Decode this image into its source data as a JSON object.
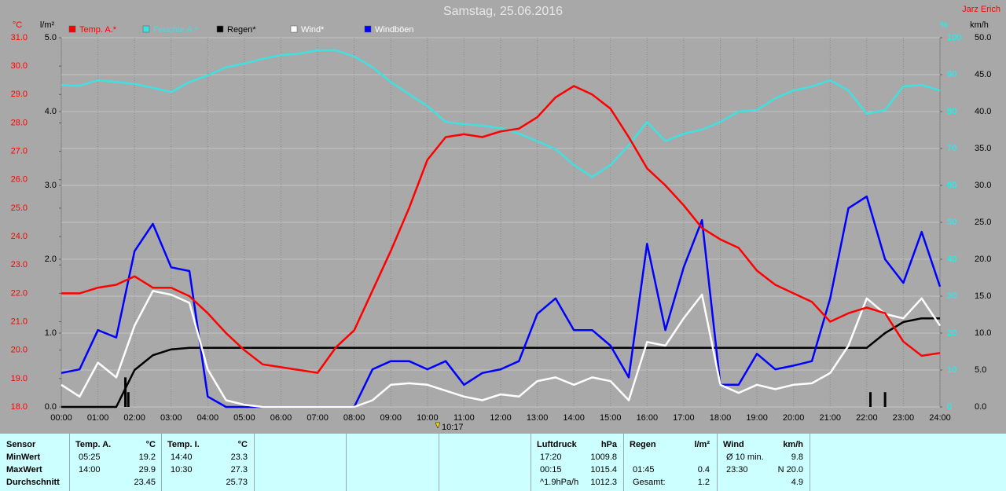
{
  "chart_data": {
    "type": "line",
    "title": "Samstag, 25.06.2016",
    "author": "Jarz Erich",
    "xlim": [
      0,
      24
    ],
    "xticks": [
      {
        "value": 0,
        "label": "00:00"
      },
      {
        "value": 1,
        "label": "01:00"
      },
      {
        "value": 2,
        "label": "02:00"
      },
      {
        "value": 3,
        "label": "03:00"
      },
      {
        "value": 4,
        "label": "04:00"
      },
      {
        "value": 5,
        "label": "05:00"
      },
      {
        "value": 6,
        "label": "06:00"
      },
      {
        "value": 7,
        "label": "07:00"
      },
      {
        "value": 8,
        "label": "08:00"
      },
      {
        "value": 9,
        "label": "09:00"
      },
      {
        "value": 10,
        "label": "10:00"
      },
      {
        "value": 11,
        "label": "11:00"
      },
      {
        "value": 12,
        "label": "12:00"
      },
      {
        "value": 13,
        "label": "13:00"
      },
      {
        "value": 14,
        "label": "14:00"
      },
      {
        "value": 15,
        "label": "15:00"
      },
      {
        "value": 16,
        "label": "16:00"
      },
      {
        "value": 17,
        "label": "17:00"
      },
      {
        "value": 18,
        "label": "18:00"
      },
      {
        "value": 19,
        "label": "19:00"
      },
      {
        "value": 20,
        "label": "20:00"
      },
      {
        "value": 21,
        "label": "21:00"
      },
      {
        "value": 22,
        "label": "22:00"
      },
      {
        "value": 23,
        "label": "23:00"
      },
      {
        "value": 24,
        "label": "24:00"
      }
    ],
    "xgrid": true,
    "axes": {
      "temp": {
        "unit": "°C",
        "color": "#ff0000",
        "lim": [
          18,
          31
        ],
        "ticks": [
          {
            "value": 18,
            "label": "18.0"
          },
          {
            "value": 19,
            "label": "19.0"
          },
          {
            "value": 20,
            "label": "20.0"
          },
          {
            "value": 21,
            "label": "21.0"
          },
          {
            "value": 22,
            "label": "22.0"
          },
          {
            "value": 23,
            "label": "23.0"
          },
          {
            "value": 24,
            "label": "24.0"
          },
          {
            "value": 25,
            "label": "25.0"
          },
          {
            "value": 26,
            "label": "26.0"
          },
          {
            "value": 27,
            "label": "27.0"
          },
          {
            "value": 28,
            "label": "28.0"
          },
          {
            "value": 29,
            "label": "29.0"
          },
          {
            "value": 30,
            "label": "30.0"
          },
          {
            "value": 31,
            "label": "31.0"
          }
        ]
      },
      "rain": {
        "unit": "l/m²",
        "color": "#000000",
        "lim": [
          0,
          5
        ],
        "ticks": [
          {
            "value": 0,
            "label": "0.0"
          },
          {
            "value": 1,
            "label": "1.0"
          },
          {
            "value": 2,
            "label": "2.0"
          },
          {
            "value": 3,
            "label": "3.0"
          },
          {
            "value": 4,
            "label": "4.0"
          },
          {
            "value": 5,
            "label": "5.0"
          }
        ]
      },
      "humidity": {
        "unit": "%",
        "color": "#00ffff",
        "lim": [
          0,
          100
        ],
        "ticks": [
          0,
          10,
          20,
          30,
          40,
          50,
          60,
          70,
          80,
          90,
          100
        ],
        "grid": true
      },
      "wind": {
        "unit": "km/h",
        "color": "#000000",
        "lim": [
          0,
          50
        ],
        "ticks": [
          {
            "value": 0,
            "label": "0.0"
          },
          {
            "value": 5,
            "label": "5.0"
          },
          {
            "value": 10,
            "label": "10.0"
          },
          {
            "value": 15,
            "label": "15.0"
          },
          {
            "value": 20,
            "label": "20.0"
          },
          {
            "value": 25,
            "label": "25.0"
          },
          {
            "value": 30,
            "label": "30.0"
          },
          {
            "value": 35,
            "label": "35.0"
          },
          {
            "value": 40,
            "label": "40.0"
          },
          {
            "value": 45,
            "label": "45.0"
          },
          {
            "value": 50,
            "label": "50.0"
          }
        ]
      }
    },
    "x": [
      0,
      0.5,
      1,
      1.5,
      2,
      2.5,
      3,
      3.5,
      4,
      4.5,
      5,
      5.5,
      6,
      6.5,
      7,
      7.5,
      8,
      8.5,
      9,
      9.5,
      10,
      10.5,
      11,
      11.5,
      12,
      12.5,
      13,
      13.5,
      14,
      14.5,
      15,
      15.5,
      16,
      16.5,
      17,
      17.5,
      18,
      18.5,
      19,
      19.5,
      20,
      20.5,
      21,
      21.5,
      22,
      22.5,
      23,
      23.5,
      24
    ],
    "series": [
      {
        "name": "Temp. A.*",
        "color": "#ff0000",
        "axis": "temp",
        "values": [
          22.0,
          22.0,
          22.2,
          22.3,
          22.6,
          22.2,
          22.2,
          21.9,
          21.3,
          20.6,
          20.0,
          19.5,
          19.4,
          19.3,
          19.2,
          20.1,
          20.7,
          22.1,
          23.5,
          25.0,
          26.7,
          27.5,
          27.6,
          27.5,
          27.7,
          27.8,
          28.2,
          28.9,
          29.3,
          29.0,
          28.5,
          27.5,
          26.4,
          25.8,
          25.1,
          24.3,
          23.9,
          23.6,
          22.8,
          22.3,
          22.0,
          21.7,
          21.0,
          21.3,
          21.5,
          21.3,
          20.3,
          19.8,
          19.9
        ]
      },
      {
        "name": "Feuchte A.*",
        "color": "#40e0e0",
        "axis": "humidity",
        "values": [
          87.2,
          87.0,
          88.5,
          88.0,
          87.5,
          86.4,
          85.3,
          88.0,
          89.8,
          92.0,
          93.0,
          94.3,
          95.3,
          95.7,
          96.6,
          96.6,
          94.9,
          92.0,
          88.0,
          84.7,
          81.5,
          77.2,
          76.6,
          76.2,
          75.5,
          74.0,
          72.0,
          69.8,
          65.5,
          62.3,
          65.5,
          70.9,
          77.2,
          72.0,
          74.0,
          75.1,
          77.2,
          80.0,
          80.4,
          83.6,
          85.7,
          86.8,
          88.5,
          85.7,
          79.4,
          80.4,
          86.8,
          87.2,
          85.7
        ]
      },
      {
        "name": "Regen*",
        "color": "#000000",
        "axis": "rain",
        "values": [
          0,
          0,
          0,
          0,
          0.5,
          0.7,
          0.78,
          0.8,
          0.8,
          0.8,
          0.8,
          0.8,
          0.8,
          0.8,
          0.8,
          0.8,
          0.8,
          0.8,
          0.8,
          0.8,
          0.8,
          0.8,
          0.8,
          0.8,
          0.8,
          0.8,
          0.8,
          0.8,
          0.8,
          0.8,
          0.8,
          0.8,
          0.8,
          0.8,
          0.8,
          0.8,
          0.8,
          0.8,
          0.8,
          0.8,
          0.8,
          0.8,
          0.8,
          0.8,
          0.8,
          1.0,
          1.15,
          1.2,
          1.2
        ],
        "bars": {
          "x": [
            1.75,
            1.83,
            22.1,
            22.5
          ],
          "values": [
            0.4,
            0.2,
            0.2,
            0.2
          ]
        }
      },
      {
        "name": "Wind*",
        "color": "#ffffff",
        "axis": "wind",
        "values": [
          3.0,
          1.4,
          6.0,
          4.0,
          11.0,
          15.7,
          15.2,
          14.1,
          5.1,
          0.9,
          0.3,
          0,
          0,
          0,
          0,
          0,
          0,
          0.9,
          3.0,
          3.2,
          3.0,
          2.2,
          1.4,
          0.9,
          1.7,
          1.4,
          3.5,
          4.0,
          3.0,
          4.0,
          3.5,
          0.9,
          8.8,
          8.3,
          12.0,
          15.2,
          3.0,
          1.9,
          3.0,
          2.4,
          3.0,
          3.2,
          4.6,
          8.3,
          14.7,
          12.6,
          12.0,
          14.7,
          11.0
        ]
      },
      {
        "name": "Windböen",
        "color": "#0000ff",
        "axis": "wind",
        "values": [
          4.6,
          5.1,
          10.4,
          9.4,
          21.1,
          24.8,
          18.9,
          18.4,
          1.4,
          0,
          0,
          0,
          0,
          0,
          0,
          0,
          0,
          5.1,
          6.2,
          6.2,
          5.1,
          6.2,
          3.0,
          4.6,
          5.1,
          6.2,
          12.6,
          14.7,
          10.4,
          10.4,
          8.3,
          4.0,
          22.1,
          10.4,
          18.9,
          25.3,
          3.0,
          3.0,
          7.2,
          5.1,
          5.6,
          6.2,
          14.7,
          26.9,
          28.5,
          20.0,
          16.8,
          23.7,
          16.3
        ]
      }
    ],
    "draw_order": [
      1,
      2,
      4,
      3,
      0
    ],
    "cursor": {
      "x": 10.2833,
      "label": "10:17"
    }
  },
  "table": {
    "row_labels": [
      "Sensor",
      "MinWert",
      "MaxWert",
      "Durchschnitt"
    ],
    "groups": [
      {
        "title": "Temp. A.",
        "unit": "°C",
        "rows": [
          [
            "05:25",
            "19.2"
          ],
          [
            "14:00",
            "29.9"
          ],
          [
            null,
            "23.45"
          ]
        ]
      },
      {
        "title": "Temp. I.",
        "unit": "°C",
        "rows": [
          [
            "14:40",
            "23.3"
          ],
          [
            "10:30",
            "27.3"
          ],
          [
            null,
            "25.73"
          ]
        ]
      },
      {
        "title": "Luftdruck",
        "unit": "hPa",
        "rows": [
          [
            "17:20",
            "1009.8"
          ],
          [
            "00:15",
            "1015.4"
          ],
          [
            "^1.9hPa/h",
            "1012.3"
          ]
        ]
      },
      {
        "title": "Regen",
        "unit": "l/m²",
        "rows": [
          [
            null,
            null
          ],
          [
            "01:45",
            "0.4"
          ],
          [
            "Gesamt:",
            "1.2"
          ]
        ]
      },
      {
        "title": "Wind",
        "unit": "km/h",
        "rows": [
          [
            "Ø 10 min.",
            "9.8"
          ],
          [
            "23:30",
            "N 20.0"
          ],
          [
            null,
            "4.9"
          ]
        ]
      }
    ]
  }
}
